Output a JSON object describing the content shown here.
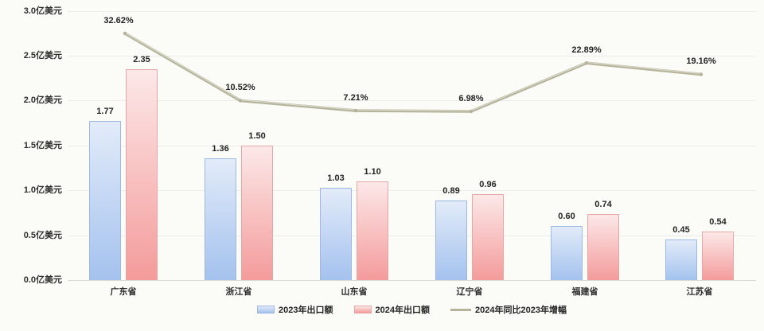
{
  "chart_data": {
    "type": "bar",
    "title": "",
    "categories": [
      "广东省",
      "浙江省",
      "山东省",
      "辽宁省",
      "福建省",
      "江苏省"
    ],
    "series": [
      {
        "name": "2023年出口额",
        "type": "bar",
        "values": [
          1.77,
          1.36,
          1.03,
          0.89,
          0.6,
          0.45
        ],
        "labels": [
          "1.77",
          "1.36",
          "1.03",
          "0.89",
          "0.60",
          "0.45"
        ],
        "color_top": "#e2ebf9",
        "color_bottom": "#a4c2ee",
        "border_color": "#9db8e2"
      },
      {
        "name": "2024年出口额",
        "type": "bar",
        "values": [
          2.35,
          1.5,
          1.1,
          0.96,
          0.74,
          0.54
        ],
        "labels": [
          "2.35",
          "1.50",
          "1.10",
          "0.96",
          "0.74",
          "0.54"
        ],
        "color_top": "#fce8e8",
        "color_bottom": "#f49b9b",
        "border_color": "#e7a6a6"
      },
      {
        "name": "2024年同比2023年增幅",
        "type": "line",
        "values": [
          32.62,
          10.52,
          7.21,
          6.98,
          22.89,
          19.16
        ],
        "labels": [
          "32.62%",
          "10.52%",
          "7.21%",
          "6.98%",
          "22.89%",
          "19.16%"
        ],
        "color": "#b4b39a",
        "highlight_color": "#d9d8c8"
      }
    ],
    "y_axis": {
      "unit": "亿美元",
      "min": 0,
      "max": 3.0,
      "step": 0.5,
      "tick_labels": [
        "0.0亿美元",
        "0.5亿美元",
        "1.0亿美元",
        "1.5亿美元",
        "2.0亿美元",
        "2.5亿美元",
        "3.0亿美元"
      ]
    },
    "secondary_y_axis": {
      "unit": "%",
      "visible": false
    },
    "grid": true,
    "legend_position": "bottom-center"
  },
  "colors": {
    "background": "#fbfbf8",
    "gridline": "#ececea",
    "text": "#2e2e2e"
  }
}
